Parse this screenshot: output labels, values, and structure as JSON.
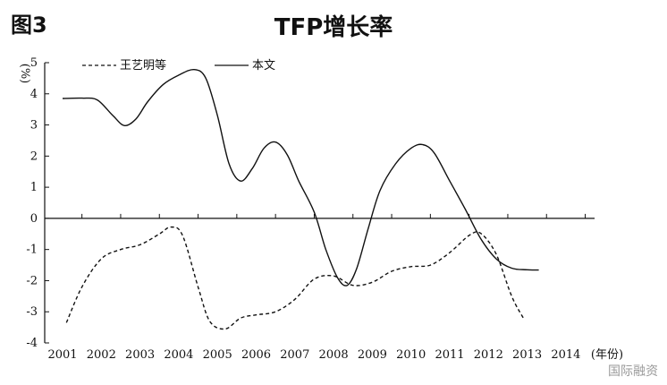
{
  "figure_label": "图3",
  "watermark": "国际融资",
  "chart_data": {
    "type": "line",
    "title": "TFP增长率",
    "ylabel": "%",
    "xlabel": "(年份)",
    "ylim": [
      -4,
      5
    ],
    "yticks": [
      5,
      4,
      3,
      2,
      1,
      0,
      -1,
      -2,
      -3,
      -4
    ],
    "xticks": [
      "2001",
      "2002",
      "2003",
      "2004",
      "2005",
      "2006",
      "2007",
      "2008",
      "2009",
      "2010",
      "2011",
      "2012",
      "2013",
      "2014"
    ],
    "legend": "top-left",
    "grid": false,
    "series": [
      {
        "name": "王艺明等",
        "style": "dashed",
        "color": "#111111",
        "points": [
          [
            2001.1,
            -3.35
          ],
          [
            2001.5,
            -2.2
          ],
          [
            2002.0,
            -1.3
          ],
          [
            2002.5,
            -1.0
          ],
          [
            2003.0,
            -0.85
          ],
          [
            2003.5,
            -0.5
          ],
          [
            2003.8,
            -0.28
          ],
          [
            2004.1,
            -0.55
          ],
          [
            2004.5,
            -2.2
          ],
          [
            2004.8,
            -3.3
          ],
          [
            2005.2,
            -3.55
          ],
          [
            2005.6,
            -3.2
          ],
          [
            2006.0,
            -3.1
          ],
          [
            2006.5,
            -3.0
          ],
          [
            2007.0,
            -2.6
          ],
          [
            2007.5,
            -1.95
          ],
          [
            2008.0,
            -1.85
          ],
          [
            2008.5,
            -2.15
          ],
          [
            2009.0,
            -2.05
          ],
          [
            2009.5,
            -1.7
          ],
          [
            2010.0,
            -1.55
          ],
          [
            2010.5,
            -1.5
          ],
          [
            2011.0,
            -1.1
          ],
          [
            2011.5,
            -0.55
          ],
          [
            2011.8,
            -0.48
          ],
          [
            2012.2,
            -1.15
          ],
          [
            2012.6,
            -2.5
          ],
          [
            2012.9,
            -3.2
          ]
        ]
      },
      {
        "name": "本文",
        "style": "solid",
        "color": "#111111",
        "points": [
          [
            2001.0,
            3.85
          ],
          [
            2001.5,
            3.86
          ],
          [
            2001.9,
            3.8
          ],
          [
            2002.3,
            3.3
          ],
          [
            2002.6,
            2.98
          ],
          [
            2002.9,
            3.2
          ],
          [
            2003.2,
            3.75
          ],
          [
            2003.6,
            4.3
          ],
          [
            2004.0,
            4.6
          ],
          [
            2004.4,
            4.78
          ],
          [
            2004.7,
            4.5
          ],
          [
            2005.0,
            3.3
          ],
          [
            2005.3,
            1.75
          ],
          [
            2005.6,
            1.2
          ],
          [
            2005.9,
            1.6
          ],
          [
            2006.2,
            2.25
          ],
          [
            2006.5,
            2.45
          ],
          [
            2006.8,
            2.05
          ],
          [
            2007.1,
            1.2
          ],
          [
            2007.5,
            0.2
          ],
          [
            2007.8,
            -1.0
          ],
          [
            2008.1,
            -1.9
          ],
          [
            2008.35,
            -2.15
          ],
          [
            2008.6,
            -1.6
          ],
          [
            2008.9,
            -0.3
          ],
          [
            2009.2,
            0.9
          ],
          [
            2009.6,
            1.75
          ],
          [
            2010.0,
            2.25
          ],
          [
            2010.3,
            2.37
          ],
          [
            2010.6,
            2.1
          ],
          [
            2011.0,
            1.2
          ],
          [
            2011.4,
            0.3
          ],
          [
            2011.8,
            -0.65
          ],
          [
            2012.2,
            -1.3
          ],
          [
            2012.6,
            -1.6
          ],
          [
            2013.0,
            -1.65
          ],
          [
            2013.3,
            -1.66
          ]
        ]
      }
    ]
  }
}
